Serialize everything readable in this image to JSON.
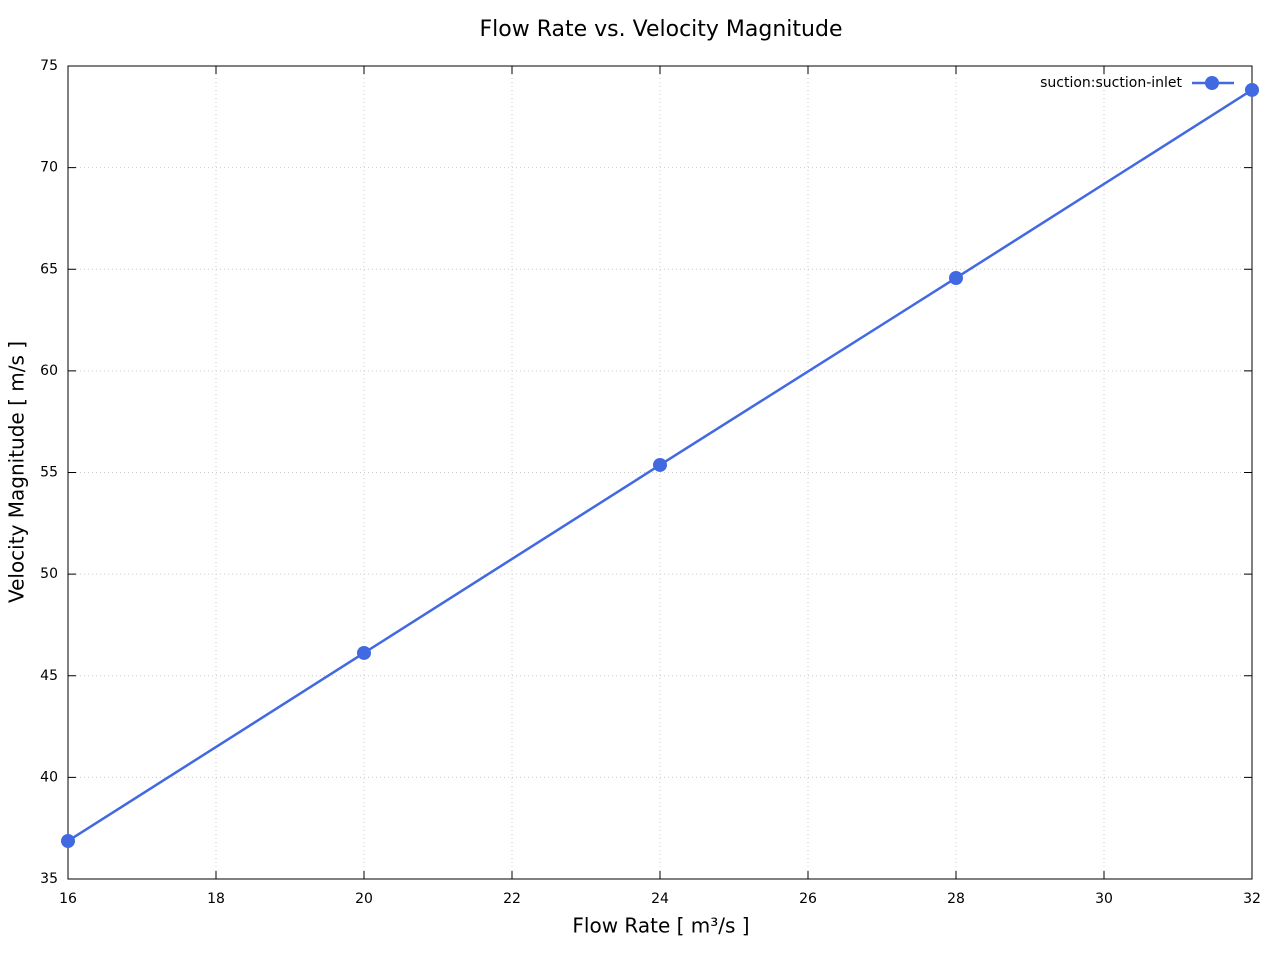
{
  "chart_data": {
    "type": "line",
    "title": "Flow Rate vs. Velocity Magnitude",
    "x_label": "Flow Rate [ m³/s ]",
    "y_label": "Velocity Magnitude [ m/s ]",
    "x": [
      16,
      20,
      24,
      28,
      32
    ],
    "series": [
      {
        "name": "suction:suction-inlet",
        "color": "#4169e1",
        "values": [
          36.87,
          46.12,
          55.37,
          64.57,
          73.82
        ]
      }
    ],
    "xlim": [
      16,
      32
    ],
    "xticks": [
      16,
      18,
      20,
      22,
      24,
      26,
      28,
      30,
      32
    ],
    "ylim": [
      35,
      75
    ],
    "yticks": [
      35,
      40,
      45,
      50,
      55,
      60,
      65,
      70,
      75
    ],
    "grid": true,
    "legend": "top-right"
  }
}
